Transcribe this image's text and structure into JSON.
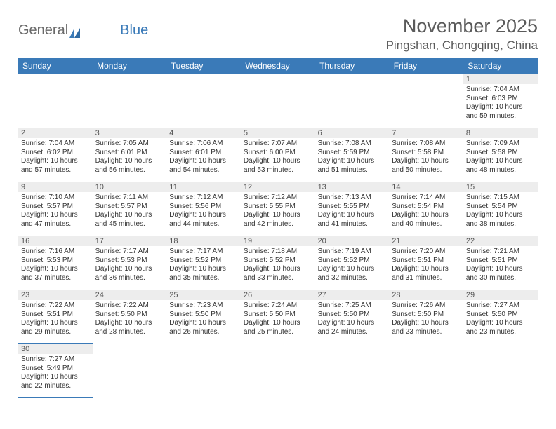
{
  "header": {
    "logo_general": "General",
    "logo_blue": "Blue",
    "month_title": "November 2025",
    "location": "Pingshan, Chongqing, China"
  },
  "colors": {
    "header_bar": "#3a7ab8",
    "text": "#333333",
    "grid_line": "#3a7ab8",
    "daynum_bg": "#ededed",
    "page_bg": "#ffffff"
  },
  "typography": {
    "title_fontsize": 27,
    "location_fontsize": 17,
    "header_cell_fontsize": 12,
    "daynum_fontsize": 11,
    "body_fontsize": 10
  },
  "calendar": {
    "type": "table",
    "day_headers": [
      "Sunday",
      "Monday",
      "Tuesday",
      "Wednesday",
      "Thursday",
      "Friday",
      "Saturday"
    ],
    "weeks": [
      [
        null,
        null,
        null,
        null,
        null,
        null,
        {
          "n": "1",
          "sunrise": "Sunrise: 7:04 AM",
          "sunset": "Sunset: 6:03 PM",
          "daylight": "Daylight: 10 hours and 59 minutes."
        }
      ],
      [
        {
          "n": "2",
          "sunrise": "Sunrise: 7:04 AM",
          "sunset": "Sunset: 6:02 PM",
          "daylight": "Daylight: 10 hours and 57 minutes."
        },
        {
          "n": "3",
          "sunrise": "Sunrise: 7:05 AM",
          "sunset": "Sunset: 6:01 PM",
          "daylight": "Daylight: 10 hours and 56 minutes."
        },
        {
          "n": "4",
          "sunrise": "Sunrise: 7:06 AM",
          "sunset": "Sunset: 6:01 PM",
          "daylight": "Daylight: 10 hours and 54 minutes."
        },
        {
          "n": "5",
          "sunrise": "Sunrise: 7:07 AM",
          "sunset": "Sunset: 6:00 PM",
          "daylight": "Daylight: 10 hours and 53 minutes."
        },
        {
          "n": "6",
          "sunrise": "Sunrise: 7:08 AM",
          "sunset": "Sunset: 5:59 PM",
          "daylight": "Daylight: 10 hours and 51 minutes."
        },
        {
          "n": "7",
          "sunrise": "Sunrise: 7:08 AM",
          "sunset": "Sunset: 5:58 PM",
          "daylight": "Daylight: 10 hours and 50 minutes."
        },
        {
          "n": "8",
          "sunrise": "Sunrise: 7:09 AM",
          "sunset": "Sunset: 5:58 PM",
          "daylight": "Daylight: 10 hours and 48 minutes."
        }
      ],
      [
        {
          "n": "9",
          "sunrise": "Sunrise: 7:10 AM",
          "sunset": "Sunset: 5:57 PM",
          "daylight": "Daylight: 10 hours and 47 minutes."
        },
        {
          "n": "10",
          "sunrise": "Sunrise: 7:11 AM",
          "sunset": "Sunset: 5:57 PM",
          "daylight": "Daylight: 10 hours and 45 minutes."
        },
        {
          "n": "11",
          "sunrise": "Sunrise: 7:12 AM",
          "sunset": "Sunset: 5:56 PM",
          "daylight": "Daylight: 10 hours and 44 minutes."
        },
        {
          "n": "12",
          "sunrise": "Sunrise: 7:12 AM",
          "sunset": "Sunset: 5:55 PM",
          "daylight": "Daylight: 10 hours and 42 minutes."
        },
        {
          "n": "13",
          "sunrise": "Sunrise: 7:13 AM",
          "sunset": "Sunset: 5:55 PM",
          "daylight": "Daylight: 10 hours and 41 minutes."
        },
        {
          "n": "14",
          "sunrise": "Sunrise: 7:14 AM",
          "sunset": "Sunset: 5:54 PM",
          "daylight": "Daylight: 10 hours and 40 minutes."
        },
        {
          "n": "15",
          "sunrise": "Sunrise: 7:15 AM",
          "sunset": "Sunset: 5:54 PM",
          "daylight": "Daylight: 10 hours and 38 minutes."
        }
      ],
      [
        {
          "n": "16",
          "sunrise": "Sunrise: 7:16 AM",
          "sunset": "Sunset: 5:53 PM",
          "daylight": "Daylight: 10 hours and 37 minutes."
        },
        {
          "n": "17",
          "sunrise": "Sunrise: 7:17 AM",
          "sunset": "Sunset: 5:53 PM",
          "daylight": "Daylight: 10 hours and 36 minutes."
        },
        {
          "n": "18",
          "sunrise": "Sunrise: 7:17 AM",
          "sunset": "Sunset: 5:52 PM",
          "daylight": "Daylight: 10 hours and 35 minutes."
        },
        {
          "n": "19",
          "sunrise": "Sunrise: 7:18 AM",
          "sunset": "Sunset: 5:52 PM",
          "daylight": "Daylight: 10 hours and 33 minutes."
        },
        {
          "n": "20",
          "sunrise": "Sunrise: 7:19 AM",
          "sunset": "Sunset: 5:52 PM",
          "daylight": "Daylight: 10 hours and 32 minutes."
        },
        {
          "n": "21",
          "sunrise": "Sunrise: 7:20 AM",
          "sunset": "Sunset: 5:51 PM",
          "daylight": "Daylight: 10 hours and 31 minutes."
        },
        {
          "n": "22",
          "sunrise": "Sunrise: 7:21 AM",
          "sunset": "Sunset: 5:51 PM",
          "daylight": "Daylight: 10 hours and 30 minutes."
        }
      ],
      [
        {
          "n": "23",
          "sunrise": "Sunrise: 7:22 AM",
          "sunset": "Sunset: 5:51 PM",
          "daylight": "Daylight: 10 hours and 29 minutes."
        },
        {
          "n": "24",
          "sunrise": "Sunrise: 7:22 AM",
          "sunset": "Sunset: 5:50 PM",
          "daylight": "Daylight: 10 hours and 28 minutes."
        },
        {
          "n": "25",
          "sunrise": "Sunrise: 7:23 AM",
          "sunset": "Sunset: 5:50 PM",
          "daylight": "Daylight: 10 hours and 26 minutes."
        },
        {
          "n": "26",
          "sunrise": "Sunrise: 7:24 AM",
          "sunset": "Sunset: 5:50 PM",
          "daylight": "Daylight: 10 hours and 25 minutes."
        },
        {
          "n": "27",
          "sunrise": "Sunrise: 7:25 AM",
          "sunset": "Sunset: 5:50 PM",
          "daylight": "Daylight: 10 hours and 24 minutes."
        },
        {
          "n": "28",
          "sunrise": "Sunrise: 7:26 AM",
          "sunset": "Sunset: 5:50 PM",
          "daylight": "Daylight: 10 hours and 23 minutes."
        },
        {
          "n": "29",
          "sunrise": "Sunrise: 7:27 AM",
          "sunset": "Sunset: 5:50 PM",
          "daylight": "Daylight: 10 hours and 23 minutes."
        }
      ],
      [
        {
          "n": "30",
          "sunrise": "Sunrise: 7:27 AM",
          "sunset": "Sunset: 5:49 PM",
          "daylight": "Daylight: 10 hours and 22 minutes."
        },
        null,
        null,
        null,
        null,
        null,
        null
      ]
    ]
  }
}
